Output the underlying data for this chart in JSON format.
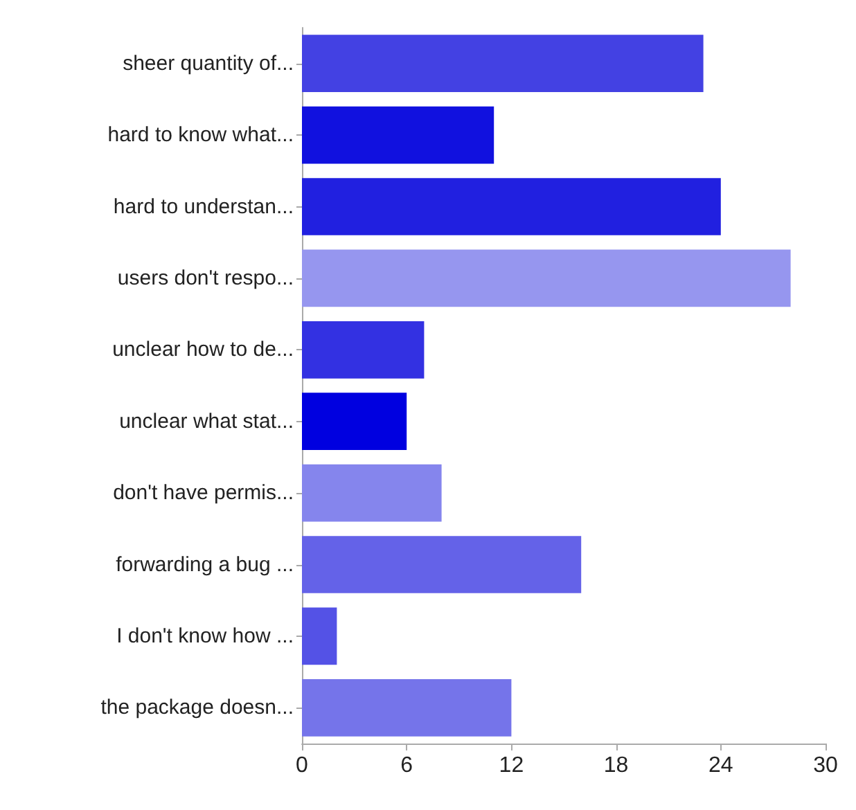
{
  "chart_data": {
    "type": "bar",
    "orientation": "horizontal",
    "categories": [
      "sheer quantity of...",
      "hard to know what...",
      "hard to understan...",
      "users don't respo...",
      "unclear how to de...",
      "unclear what stat...",
      "don't have permis...",
      "forwarding a bug ...",
      "I don't know how ...",
      "the package doesn..."
    ],
    "values": [
      23,
      11,
      24,
      28,
      7,
      6,
      8,
      16,
      2,
      12
    ],
    "colors": [
      "#4341e3",
      "#1111df",
      "#2120e0",
      "#9696ef",
      "#3331e2",
      "#0000e0",
      "#8585ed",
      "#6462e8",
      "#5452e6",
      "#7574ea"
    ],
    "xlim": [
      0,
      30
    ],
    "xticks": [
      0,
      6,
      12,
      18,
      24,
      30
    ],
    "grid": false
  }
}
